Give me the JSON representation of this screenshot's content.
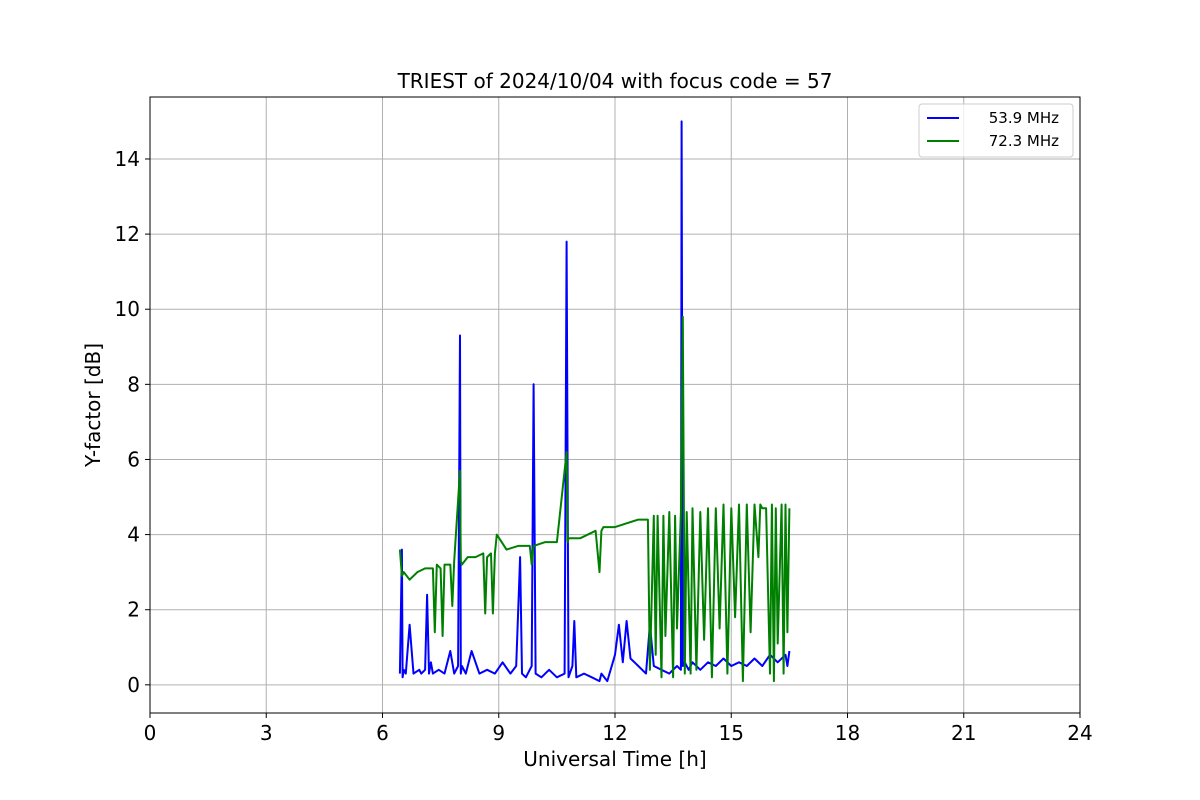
{
  "chart_data": {
    "type": "line",
    "title": "TRIEST of 2024/10/04 with focus code = 57",
    "xlabel": "Universal Time [h]",
    "ylabel": "Y-factor [dB]",
    "xlim": [
      0,
      24
    ],
    "ylim": [
      -0.75,
      15.65
    ],
    "xticks": [
      0,
      3,
      6,
      9,
      12,
      15,
      18,
      21,
      24
    ],
    "yticks": [
      0,
      2,
      4,
      6,
      8,
      10,
      12,
      14
    ],
    "grid": true,
    "legend_position": "top-right",
    "series": [
      {
        "name": "53.9 MHz",
        "color": "#0000ff",
        "x": [
          6.45,
          6.5,
          6.52,
          6.55,
          6.6,
          6.7,
          6.8,
          6.95,
          7.0,
          7.1,
          7.15,
          7.2,
          7.25,
          7.3,
          7.45,
          7.6,
          7.75,
          7.85,
          7.95,
          8.0,
          8.02,
          8.05,
          8.15,
          8.3,
          8.5,
          8.7,
          8.9,
          9.1,
          9.3,
          9.45,
          9.55,
          9.6,
          9.7,
          9.85,
          9.9,
          9.95,
          10.1,
          10.3,
          10.5,
          10.7,
          10.75,
          10.8,
          10.9,
          10.95,
          11.0,
          11.2,
          11.4,
          11.6,
          11.65,
          11.8,
          12.0,
          12.1,
          12.2,
          12.3,
          12.4,
          12.6,
          12.8,
          12.9,
          13.0,
          13.2,
          13.4,
          13.6,
          13.7,
          13.72,
          13.75,
          13.8,
          13.9,
          14.0,
          14.2,
          14.4,
          14.6,
          14.8,
          15.0,
          15.2,
          15.4,
          15.6,
          15.8,
          16.0,
          16.2,
          16.4,
          16.45,
          16.5
        ],
        "y": [
          0.3,
          3.6,
          0.2,
          0.4,
          0.3,
          1.6,
          0.3,
          0.4,
          0.3,
          0.4,
          2.4,
          0.3,
          0.6,
          0.3,
          0.4,
          0.3,
          0.9,
          0.3,
          0.5,
          9.3,
          0.3,
          0.5,
          0.3,
          0.9,
          0.3,
          0.4,
          0.3,
          0.6,
          0.3,
          0.5,
          3.4,
          0.3,
          0.2,
          0.5,
          8.0,
          0.3,
          0.2,
          0.4,
          0.2,
          0.3,
          11.8,
          0.2,
          0.5,
          1.7,
          0.2,
          0.3,
          0.2,
          0.1,
          0.3,
          0.1,
          0.8,
          1.6,
          0.6,
          1.7,
          0.7,
          0.5,
          0.3,
          1.6,
          0.5,
          0.4,
          0.3,
          0.5,
          0.4,
          15.0,
          0.5,
          0.6,
          0.4,
          0.6,
          0.4,
          0.6,
          0.5,
          0.7,
          0.5,
          0.6,
          0.5,
          0.7,
          0.5,
          0.8,
          0.6,
          0.8,
          0.5,
          0.9
        ]
      },
      {
        "name": "72.3 MHz",
        "color": "#008000",
        "x": [
          6.45,
          6.5,
          6.55,
          6.7,
          6.9,
          7.1,
          7.3,
          7.35,
          7.4,
          7.5,
          7.55,
          7.6,
          7.75,
          7.8,
          7.85,
          8.0,
          8.02,
          8.05,
          8.2,
          8.4,
          8.6,
          8.65,
          8.7,
          8.8,
          8.85,
          8.9,
          8.95,
          9.2,
          9.5,
          9.8,
          9.85,
          9.9,
          10.2,
          10.5,
          10.75,
          10.78,
          10.8,
          11.1,
          11.5,
          11.6,
          11.65,
          11.7,
          12.0,
          12.3,
          12.6,
          12.85,
          12.9,
          13.0,
          13.05,
          13.1,
          13.2,
          13.25,
          13.3,
          13.4,
          13.5,
          13.55,
          13.6,
          13.7,
          13.75,
          13.8,
          13.85,
          13.95,
          14.0,
          14.1,
          14.2,
          14.3,
          14.4,
          14.5,
          14.6,
          14.7,
          14.8,
          14.9,
          15.0,
          15.1,
          15.2,
          15.3,
          15.4,
          15.5,
          15.6,
          15.7,
          15.75,
          15.8,
          15.9,
          16.0,
          16.05,
          16.1,
          16.15,
          16.2,
          16.3,
          16.35,
          16.4,
          16.45,
          16.5
        ],
        "y": [
          3.6,
          2.9,
          3.0,
          2.8,
          3.0,
          3.1,
          3.1,
          1.4,
          3.2,
          3.1,
          1.3,
          3.2,
          3.2,
          2.1,
          3.3,
          5.7,
          3.3,
          3.2,
          3.4,
          3.4,
          3.5,
          1.9,
          3.4,
          3.5,
          1.9,
          3.5,
          4.0,
          3.6,
          3.7,
          3.7,
          3.2,
          3.7,
          3.8,
          3.8,
          6.2,
          3.8,
          3.9,
          3.9,
          4.1,
          3.0,
          4.1,
          4.2,
          4.2,
          4.3,
          4.4,
          4.4,
          0.4,
          4.5,
          0.8,
          4.5,
          0.2,
          4.5,
          1.3,
          4.6,
          0.2,
          4.5,
          1.5,
          4.6,
          9.8,
          0.3,
          4.6,
          0.3,
          4.7,
          0.4,
          4.6,
          1.2,
          4.7,
          0.2,
          4.7,
          1.5,
          4.8,
          0.3,
          4.7,
          1.8,
          4.8,
          0.1,
          4.8,
          1.4,
          4.8,
          3.4,
          4.8,
          4.7,
          4.7,
          0.3,
          4.8,
          0.1,
          4.7,
          1.1,
          4.8,
          0.3,
          4.8,
          1.4,
          4.7
        ]
      }
    ]
  }
}
